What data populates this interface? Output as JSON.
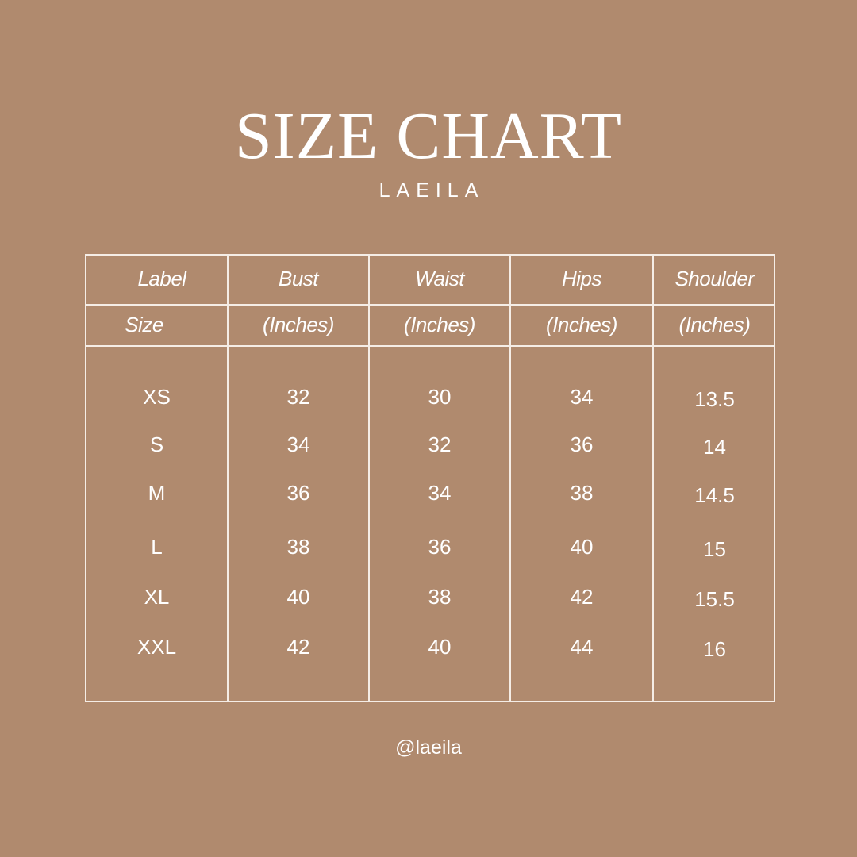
{
  "header": {
    "title": "SIZE CHART",
    "brand": "LAEILA"
  },
  "background_color": "#b08a6e",
  "table": {
    "header_row1": [
      "Label",
      "Bust",
      "Waist",
      "Hips",
      "Shoulder"
    ],
    "header_row2": [
      "Size",
      "(Inches)",
      "(Inches)",
      "(Inches)",
      "(Inches)"
    ],
    "rows": [
      [
        "XS",
        "32",
        "30",
        "34",
        "13.5"
      ],
      [
        "S",
        "34",
        "32",
        "36",
        "14"
      ],
      [
        "M",
        "36",
        "34",
        "38",
        "14.5"
      ],
      [
        "L",
        "38",
        "36",
        "40",
        "15"
      ],
      [
        "XL",
        "40",
        "38",
        "42",
        "15.5"
      ],
      [
        "XXL",
        "42",
        "40",
        "44",
        "16"
      ]
    ]
  },
  "footer": {
    "handle": "@laeila"
  }
}
